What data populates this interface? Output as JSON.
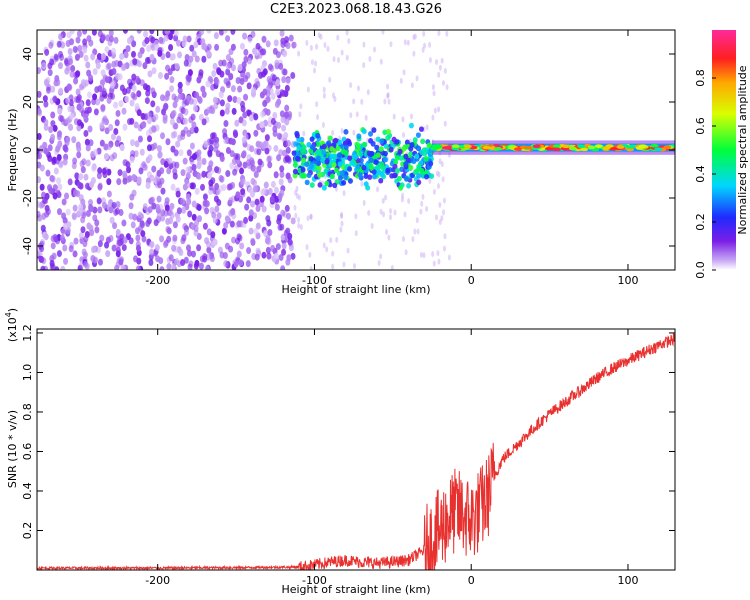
{
  "title": "C2E3.2023.068.18.43.G26",
  "colors": {
    "snr_line": "#e8312f",
    "spectral_low": "#7a1fe6",
    "spectral_high": "#ff2a2a"
  },
  "chart_data": [
    {
      "type": "heatmap",
      "xlabel": "Height of straight line (km)",
      "ylabel": "Frequency (Hz)",
      "xlim": [
        -277,
        130
      ],
      "ylim": [
        -50,
        50
      ],
      "xticks": [
        -200,
        -100,
        0,
        100
      ],
      "xtick_labels": [
        "-200",
        "-100",
        "0",
        "100"
      ],
      "yticks": [
        -40,
        -20,
        0,
        20,
        40
      ],
      "ytick_labels": [
        "-40",
        "-20",
        "0",
        "20",
        "40"
      ],
      "colorbar": {
        "label": "Normalized spectral amplitude",
        "range": [
          0,
          1
        ],
        "ticks": [
          0,
          0.2,
          0.4,
          0.6,
          0.8
        ],
        "tick_labels": [
          "0.0",
          "0.2",
          "0.4",
          "0.6",
          "0.8"
        ],
        "colormap": "rainbow (violet-blue-cyan-green-yellow-red-magenta)"
      },
      "regions": [
        {
          "x_range": [
            -277,
            -113
          ],
          "description": "broadband noise across all frequencies",
          "typical_amplitude": 0.05
        },
        {
          "x_range": [
            -113,
            -25
          ],
          "description": "signal emerging near 0 Hz with wide spread",
          "center_hz": -4,
          "spread_hz": 10,
          "typical_amplitude": 0.35
        },
        {
          "x_range": [
            -25,
            130
          ],
          "description": "narrow signal line near 0 Hz",
          "center_hz": 1,
          "spread_hz": 3,
          "typical_amplitude": 0.8
        }
      ],
      "grid": false
    },
    {
      "type": "line",
      "xlabel": "Height of straight line (km)",
      "ylabel": "SNR (10 * v/v)",
      "y_multiplier_label": "(x10",
      "y_multiplier_exp": "4",
      "xlim": [
        -277,
        130
      ],
      "ylim": [
        0,
        1.22
      ],
      "xticks": [
        -200,
        -100,
        0,
        100
      ],
      "xtick_labels": [
        "-200",
        "-100",
        "0",
        "100"
      ],
      "yticks": [
        0.2,
        0.4,
        0.6,
        0.8,
        1.0,
        1.2
      ],
      "ytick_labels": [
        "0.2",
        "0.4",
        "0.6",
        "0.8",
        "1.0",
        "1.2"
      ],
      "series": [
        {
          "x": [
            -277,
            -250,
            -200,
            -150,
            -110,
            -100,
            -90,
            -80,
            -70,
            -60,
            -50,
            -40,
            -30,
            -25,
            -20,
            -15,
            -10,
            -5,
            0,
            5,
            10,
            15,
            20,
            30,
            40,
            50,
            60,
            70,
            80,
            90,
            100,
            110,
            120,
            130
          ],
          "y": [
            0.01,
            0.01,
            0.01,
            0.012,
            0.015,
            0.025,
            0.04,
            0.05,
            0.04,
            0.035,
            0.04,
            0.05,
            0.1,
            0.15,
            0.2,
            0.26,
            0.3,
            0.28,
            0.25,
            0.3,
            0.36,
            0.48,
            0.56,
            0.64,
            0.72,
            0.79,
            0.85,
            0.91,
            0.97,
            1.02,
            1.06,
            1.1,
            1.14,
            1.17
          ]
        }
      ],
      "grid": false
    }
  ]
}
